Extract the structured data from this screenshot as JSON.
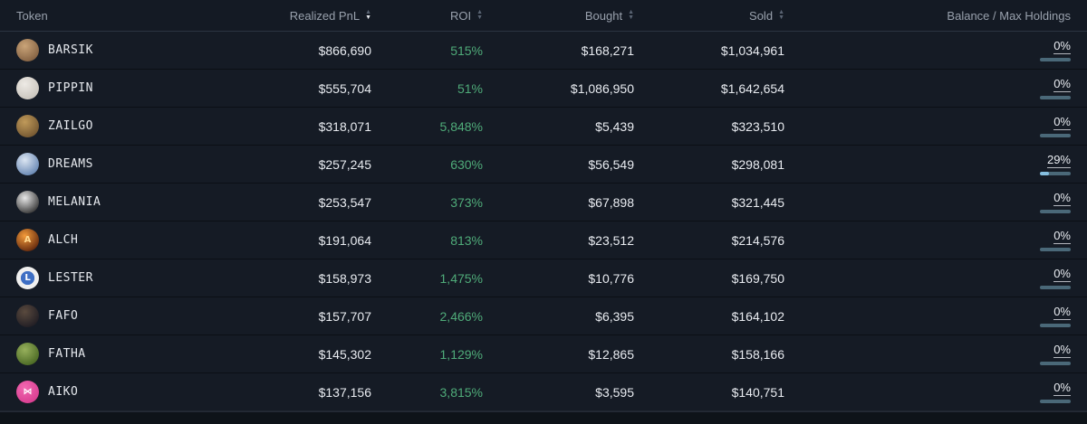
{
  "colors": {
    "green_roi": "#4fab79",
    "bar_track": "#4a6878",
    "bar_fill": "#85bedf",
    "header_text": "#99a1ad",
    "value_text": "#e9ecf1"
  },
  "table": {
    "columns": [
      {
        "label": "Token",
        "sort": "none"
      },
      {
        "label": "Realized PnL",
        "sort": "desc-active"
      },
      {
        "label": "ROI",
        "sort": "both"
      },
      {
        "label": "Bought",
        "sort": "both"
      },
      {
        "label": "Sold",
        "sort": "both"
      },
      {
        "label": "Balance / Max Holdings",
        "sort": "none"
      }
    ],
    "rows": [
      {
        "token": "BARSIK",
        "pnl": "$866,690",
        "roi": "515%",
        "bought": "$168,271",
        "sold": "$1,034,961",
        "balance_pct": "0%",
        "balance_fill": 0,
        "avatar": {
          "c1": "#caa478",
          "c2": "#7e5c3e",
          "glyph": "",
          "glyph_color": ""
        }
      },
      {
        "token": "PIPPIN",
        "pnl": "$555,704",
        "roi": "51%",
        "bought": "$1,086,950",
        "sold": "$1,642,654",
        "balance_pct": "0%",
        "balance_fill": 0,
        "avatar": {
          "c1": "#edeae5",
          "c2": "#c6c1b9",
          "glyph": "",
          "glyph_color": ""
        }
      },
      {
        "token": "ZAILGO",
        "pnl": "$318,071",
        "roi": "5,848%",
        "bought": "$5,439",
        "sold": "$323,510",
        "balance_pct": "0%",
        "balance_fill": 0,
        "avatar": {
          "c1": "#c09a5a",
          "c2": "#6e522e",
          "glyph": "",
          "glyph_color": ""
        }
      },
      {
        "token": "DREAMS",
        "pnl": "$257,245",
        "roi": "630%",
        "bought": "$56,549",
        "sold": "$298,081",
        "balance_pct": "29%",
        "balance_fill": 29,
        "avatar": {
          "c1": "#dce6f2",
          "c2": "#5e7fae",
          "glyph": "",
          "glyph_color": ""
        }
      },
      {
        "token": "MELANIA",
        "pnl": "$253,547",
        "roi": "373%",
        "bought": "$67,898",
        "sold": "$321,445",
        "balance_pct": "0%",
        "balance_fill": 0,
        "avatar": {
          "c1": "#e8e8e8",
          "c2": "#2b2b2b",
          "glyph": "",
          "glyph_color": ""
        }
      },
      {
        "token": "ALCH",
        "pnl": "$191,064",
        "roi": "813%",
        "bought": "$23,512",
        "sold": "$214,576",
        "balance_pct": "0%",
        "balance_fill": 0,
        "avatar": {
          "c1": "#f49b3a",
          "c2": "#58200a",
          "glyph": "A",
          "glyph_color": "#ffd98e"
        }
      },
      {
        "token": "LESTER",
        "pnl": "$158,973",
        "roi": "1,475%",
        "bought": "$10,776",
        "sold": "$169,750",
        "balance_pct": "0%",
        "balance_fill": 0,
        "avatar": {
          "c1": "#3e6fc4",
          "c2": "#f0f0ef",
          "glyph": "L",
          "glyph_color": "#ffffff",
          "ring": true
        }
      },
      {
        "token": "FAFO",
        "pnl": "$157,707",
        "roi": "2,466%",
        "bought": "$6,395",
        "sold": "$164,102",
        "balance_pct": "0%",
        "balance_fill": 0,
        "avatar": {
          "c1": "#5a4a3e",
          "c2": "#1c1a22",
          "glyph": "",
          "glyph_color": ""
        }
      },
      {
        "token": "FATHA",
        "pnl": "$145,302",
        "roi": "1,129%",
        "bought": "$12,865",
        "sold": "$158,166",
        "balance_pct": "0%",
        "balance_fill": 0,
        "avatar": {
          "c1": "#97b05c",
          "c2": "#44631f",
          "glyph": "",
          "glyph_color": ""
        }
      },
      {
        "token": "AIKO",
        "pnl": "$137,156",
        "roi": "3,815%",
        "bought": "$3,595",
        "sold": "$140,751",
        "balance_pct": "0%",
        "balance_fill": 0,
        "avatar": {
          "c1": "#f268b1",
          "c2": "#d63a8e",
          "glyph": "⋈",
          "glyph_color": "#ffffff"
        }
      }
    ]
  }
}
